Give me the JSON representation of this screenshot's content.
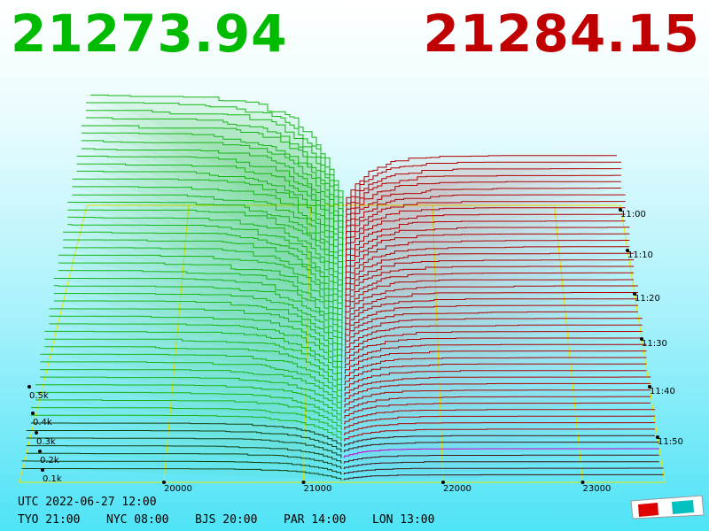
{
  "bid": "21273.94",
  "ask": "21284.15",
  "price_axis": {
    "ticks": [
      "20000",
      "21000",
      "22000",
      "23000"
    ]
  },
  "time_axis": {
    "ticks": [
      "11:00",
      "11:10",
      "11:20",
      "11:30",
      "11:40",
      "11:50"
    ]
  },
  "volume_axis": {
    "ticks": [
      "0.5k",
      "0.4k",
      "0.3k",
      "0.2k",
      "0.1k"
    ]
  },
  "footer": {
    "utc": "UTC 2022-06-27 12:00",
    "zones": [
      "TYO 21:00",
      "NYC 08:00",
      "BJS 20:00",
      "PAR 14:00",
      "LON 13:00"
    ]
  }
}
